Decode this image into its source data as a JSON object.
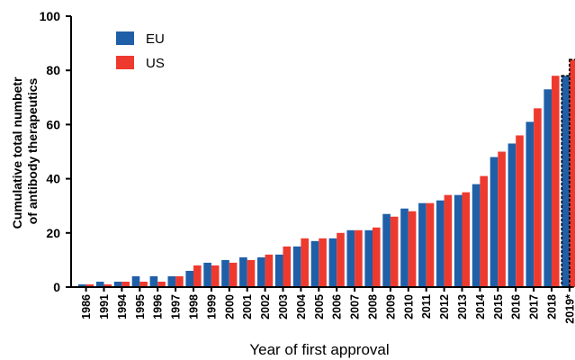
{
  "chart_data": {
    "type": "bar",
    "xlabel": "Year of first approval",
    "ylabel_lines": [
      "Cumulative total numbetr",
      "of antibody therapeutics"
    ],
    "ylim": [
      0,
      100
    ],
    "yticks": [
      "0",
      "20",
      "40",
      "60",
      "80",
      "100"
    ],
    "grid": false,
    "legend": "top-left",
    "categories": [
      "1986",
      "1991",
      "1994",
      "1995",
      "1996",
      "1997",
      "1998",
      "1999",
      "2000",
      "2001",
      "2002",
      "2003",
      "2004",
      "2005",
      "2006",
      "2007",
      "2008",
      "2009",
      "2010",
      "2011",
      "2012",
      "2013",
      "2014",
      "2015",
      "2016",
      "2017",
      "2018",
      "2019*"
    ],
    "series": [
      {
        "name": "EU",
        "color": "#1f5fa8",
        "values": [
          1,
          2,
          2,
          4,
          4,
          4,
          6,
          9,
          10,
          11,
          11,
          12,
          15,
          17,
          18,
          21,
          21,
          27,
          29,
          31,
          32,
          34,
          38,
          48,
          53,
          61,
          73,
          78
        ]
      },
      {
        "name": "US",
        "color": "#ee3a2e",
        "values": [
          1,
          1,
          2,
          2,
          2,
          4,
          8,
          8,
          9,
          10,
          12,
          15,
          18,
          18,
          20,
          21,
          22,
          26,
          28,
          31,
          34,
          35,
          41,
          50,
          56,
          66,
          78,
          84
        ]
      }
    ],
    "estimated_category": "2019*"
  }
}
